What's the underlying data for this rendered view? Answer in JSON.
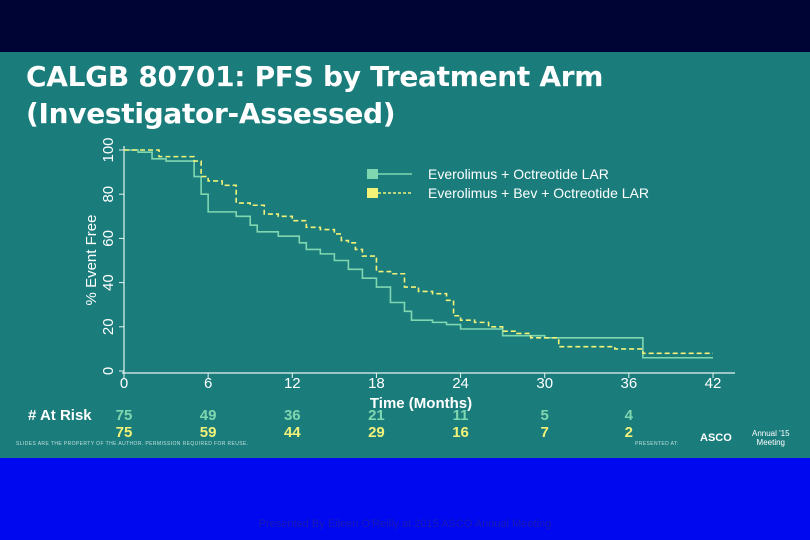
{
  "slide": {
    "title_line1": "CALGB 80701: PFS by Treatment Arm",
    "title_line2": "(Investigator-Assessed)",
    "disclaimer": "SLIDES ARE THE PROPERTY OF THE AUTHOR. PERMISSION REQUIRED FOR REUSE.",
    "presented_at": "PRESENTED AT:",
    "logo_text": "ASCO",
    "logo_sub_line1": "Annual '15",
    "logo_sub_line2": "Meeting",
    "footer": "Presented By Eileen O'Reilly at 2015 ASCO Annual Meeting",
    "colors": {
      "background": "#1b7c7c",
      "frame": "#0008f0",
      "series1": "#7fd7b0",
      "series2": "#f2f279"
    }
  },
  "chart_data": {
    "type": "line",
    "step": true,
    "xlabel": "Time (Months)",
    "ylabel": "% Event Free",
    "xlim": [
      0,
      42
    ],
    "ylim": [
      0,
      100
    ],
    "xticks": [
      0,
      6,
      12,
      18,
      24,
      30,
      36,
      42
    ],
    "yticks": [
      0,
      20,
      40,
      60,
      80,
      100
    ],
    "legend_position": "top-right",
    "series": [
      {
        "name": "Everolimus + Octreotide LAR",
        "color": "#7fd7b0",
        "style": "solid",
        "points": [
          [
            0,
            100
          ],
          [
            1,
            99
          ],
          [
            2,
            96
          ],
          [
            3,
            95
          ],
          [
            5,
            88
          ],
          [
            5.5,
            80
          ],
          [
            6,
            72
          ],
          [
            7,
            72
          ],
          [
            8,
            70
          ],
          [
            9,
            66
          ],
          [
            9.5,
            63
          ],
          [
            11,
            61
          ],
          [
            12,
            61
          ],
          [
            12.5,
            58
          ],
          [
            13,
            55
          ],
          [
            14,
            53
          ],
          [
            15,
            50
          ],
          [
            16,
            46
          ],
          [
            17,
            42
          ],
          [
            18,
            38
          ],
          [
            19,
            31
          ],
          [
            20,
            27
          ],
          [
            20.5,
            23
          ],
          [
            21,
            23
          ],
          [
            22,
            22
          ],
          [
            23,
            21
          ],
          [
            24,
            19
          ],
          [
            25,
            19
          ],
          [
            27,
            16
          ],
          [
            28,
            16
          ],
          [
            30,
            15
          ],
          [
            34,
            15
          ],
          [
            35,
            15
          ],
          [
            37,
            6
          ],
          [
            40,
            6
          ],
          [
            42,
            6
          ]
        ]
      },
      {
        "name": "Everolimus + Bev + Octreotide LAR",
        "color": "#f2f279",
        "style": "dashed",
        "points": [
          [
            0,
            100
          ],
          [
            2,
            100
          ],
          [
            2.5,
            97
          ],
          [
            4,
            97
          ],
          [
            5,
            95
          ],
          [
            5.5,
            88
          ],
          [
            6,
            86
          ],
          [
            7,
            84
          ],
          [
            8,
            76
          ],
          [
            9,
            75
          ],
          [
            10,
            71
          ],
          [
            11,
            70
          ],
          [
            12,
            68
          ],
          [
            13,
            65
          ],
          [
            14,
            64
          ],
          [
            15,
            62
          ],
          [
            15.5,
            59
          ],
          [
            16,
            58
          ],
          [
            16.5,
            55
          ],
          [
            17,
            52
          ],
          [
            18,
            45
          ],
          [
            19,
            44
          ],
          [
            20,
            38
          ],
          [
            21,
            36
          ],
          [
            22,
            35
          ],
          [
            23,
            32
          ],
          [
            23.5,
            25
          ],
          [
            24,
            23
          ],
          [
            25,
            22
          ],
          [
            26,
            20
          ],
          [
            27,
            18
          ],
          [
            28,
            17
          ],
          [
            29,
            15
          ],
          [
            31,
            11
          ],
          [
            34,
            11
          ],
          [
            35,
            10
          ],
          [
            37,
            8
          ],
          [
            42,
            8
          ]
        ]
      }
    ],
    "at_risk": {
      "label": "# At Risk",
      "times": [
        0,
        6,
        12,
        18,
        24,
        30,
        36
      ],
      "rows": [
        {
          "series": "Everolimus + Octreotide LAR",
          "values": [
            75,
            49,
            36,
            21,
            11,
            5,
            4
          ]
        },
        {
          "series": "Everolimus + Bev + Octreotide LAR",
          "values": [
            75,
            59,
            44,
            29,
            16,
            7,
            2
          ]
        }
      ]
    }
  }
}
